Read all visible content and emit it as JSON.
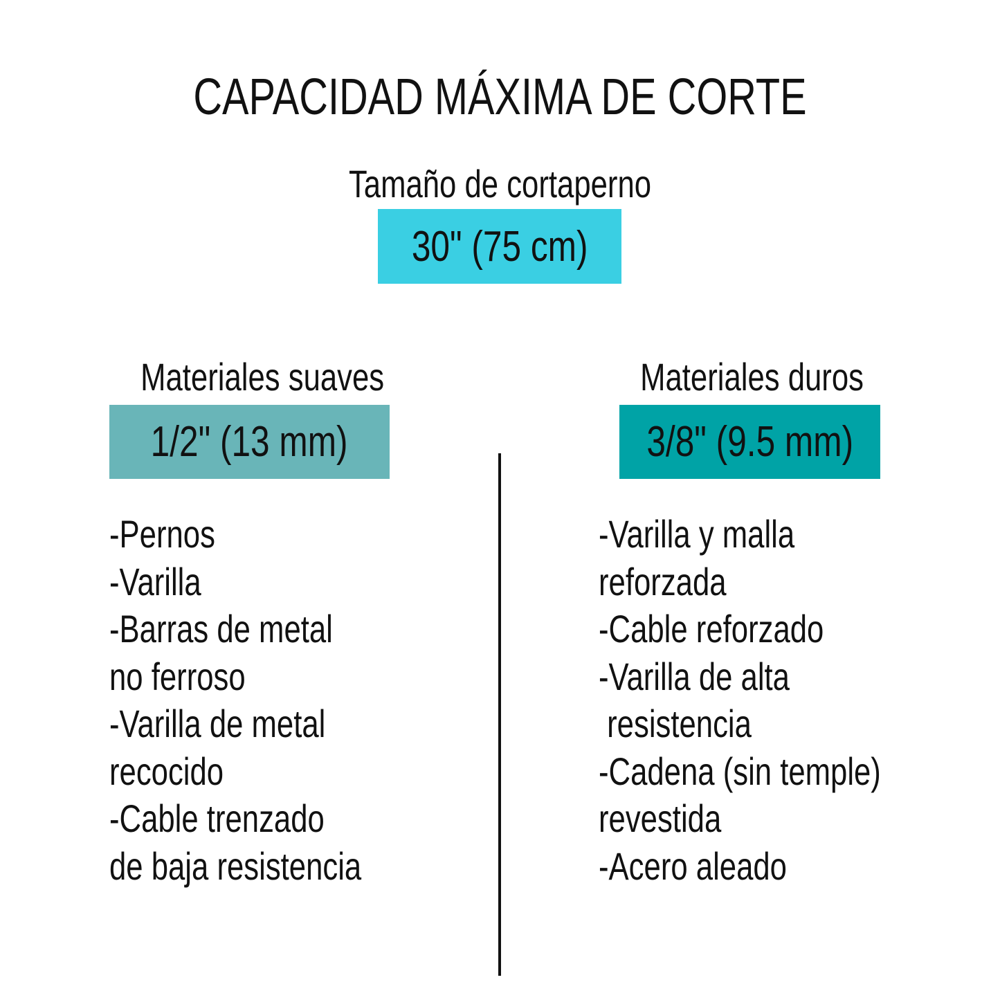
{
  "title": "CAPACIDAD MÁXIMA DE CORTE",
  "size": {
    "label": "Tamaño de cortaperno",
    "value": "30\" (75 cm)",
    "color": "#3acfe3"
  },
  "soft": {
    "label": "Materiales suaves",
    "value": "1/2\" (13 mm)",
    "color": "#69b5b8",
    "lines": [
      "-Pernos",
      "-Varilla",
      "-Barras de metal",
      "no ferroso",
      "-Varilla de metal",
      "recocido",
      "-Cable trenzado",
      "de baja resistencia"
    ]
  },
  "hard": {
    "label": "Materiales duros",
    "value": "3/8\" (9.5 mm)",
    "color": "#00a3a6",
    "lines": [
      "-Varilla y malla",
      "reforzada",
      "-Cable reforzado",
      "-Varilla de alta",
      " resistencia",
      "-Cadena (sin temple)",
      "revestida",
      "-Acero aleado"
    ]
  }
}
